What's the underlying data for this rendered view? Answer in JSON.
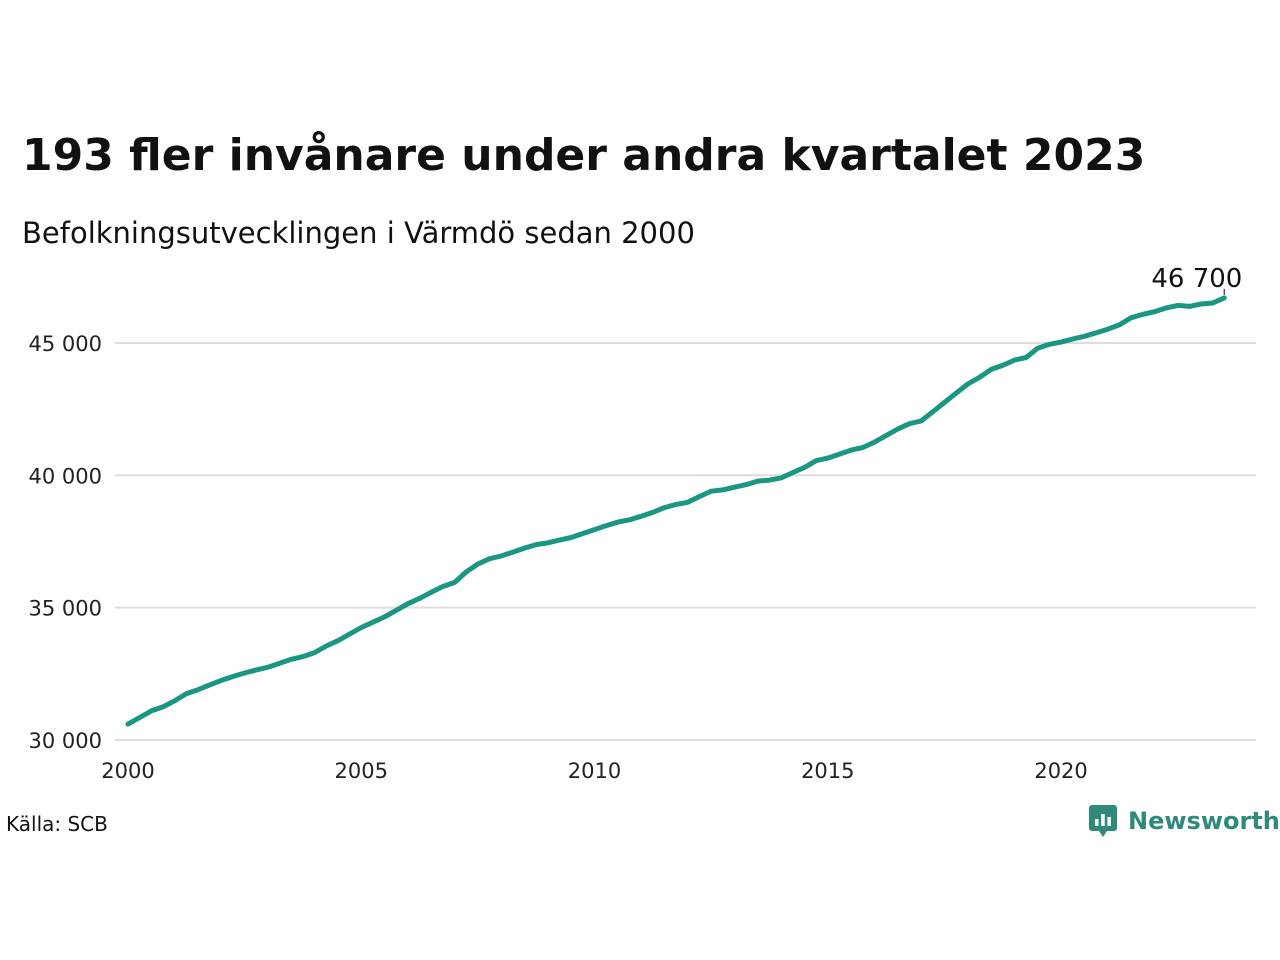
{
  "title": "193 fler invånare under andra kvartalet 2023",
  "subtitle": "Befolkningsutvecklingen i Värmdö sedan 2000",
  "source": "Källa: SCB",
  "brand": "Newsworthy",
  "colors": {
    "line": "#1a9683",
    "grid": "#dddddd",
    "brand": "#2f8a7b"
  },
  "chart_data": {
    "type": "line",
    "title": "193 fler invånare under andra kvartalet 2023",
    "subtitle": "Befolkningsutvecklingen i Värmdö sedan 2000",
    "xlim": [
      2000,
      2024.2
    ],
    "ylim": [
      30000,
      47000
    ],
    "x_ticks": [
      2000,
      2005,
      2010,
      2015,
      2020
    ],
    "x_tick_labels": [
      "2000",
      "2005",
      "2010",
      "2015",
      "2020"
    ],
    "y_ticks": [
      30000,
      35000,
      40000,
      45000
    ],
    "y_tick_labels": [
      "30 000",
      "35 000",
      "40 000",
      "45 000"
    ],
    "grid": "horizontal",
    "end_label": "46 700",
    "series": [
      {
        "values": [
          [
            2000.0,
            30600
          ],
          [
            2000.25,
            30850
          ],
          [
            2000.5,
            31100
          ],
          [
            2000.75,
            31250
          ],
          [
            2001.0,
            31480
          ],
          [
            2001.25,
            31750
          ],
          [
            2001.5,
            31900
          ],
          [
            2001.75,
            32080
          ],
          [
            2002.0,
            32250
          ],
          [
            2002.25,
            32400
          ],
          [
            2002.5,
            32530
          ],
          [
            2002.75,
            32650
          ],
          [
            2003.0,
            32750
          ],
          [
            2003.25,
            32900
          ],
          [
            2003.5,
            33050
          ],
          [
            2003.75,
            33150
          ],
          [
            2004.0,
            33300
          ],
          [
            2004.25,
            33550
          ],
          [
            2004.5,
            33750
          ],
          [
            2004.75,
            34000
          ],
          [
            2005.0,
            34250
          ],
          [
            2005.25,
            34450
          ],
          [
            2005.5,
            34650
          ],
          [
            2005.75,
            34900
          ],
          [
            2006.0,
            35150
          ],
          [
            2006.25,
            35350
          ],
          [
            2006.5,
            35580
          ],
          [
            2006.75,
            35800
          ],
          [
            2007.0,
            35950
          ],
          [
            2007.25,
            36350
          ],
          [
            2007.5,
            36650
          ],
          [
            2007.75,
            36850
          ],
          [
            2008.0,
            36950
          ],
          [
            2008.25,
            37100
          ],
          [
            2008.5,
            37250
          ],
          [
            2008.75,
            37380
          ],
          [
            2009.0,
            37450
          ],
          [
            2009.25,
            37550
          ],
          [
            2009.5,
            37650
          ],
          [
            2009.75,
            37800
          ],
          [
            2010.0,
            37950
          ],
          [
            2010.25,
            38100
          ],
          [
            2010.5,
            38230
          ],
          [
            2010.75,
            38320
          ],
          [
            2011.0,
            38450
          ],
          [
            2011.25,
            38600
          ],
          [
            2011.5,
            38780
          ],
          [
            2011.75,
            38900
          ],
          [
            2012.0,
            38980
          ],
          [
            2012.25,
            39200
          ],
          [
            2012.5,
            39400
          ],
          [
            2012.75,
            39450
          ],
          [
            2013.0,
            39550
          ],
          [
            2013.25,
            39650
          ],
          [
            2013.5,
            39780
          ],
          [
            2013.75,
            39820
          ],
          [
            2014.0,
            39900
          ],
          [
            2014.25,
            40100
          ],
          [
            2014.5,
            40300
          ],
          [
            2014.75,
            40550
          ],
          [
            2015.0,
            40650
          ],
          [
            2015.25,
            40800
          ],
          [
            2015.5,
            40950
          ],
          [
            2015.75,
            41050
          ],
          [
            2016.0,
            41250
          ],
          [
            2016.25,
            41500
          ],
          [
            2016.5,
            41750
          ],
          [
            2016.75,
            41950
          ],
          [
            2017.0,
            42050
          ],
          [
            2017.25,
            42400
          ],
          [
            2017.5,
            42750
          ],
          [
            2017.75,
            43100
          ],
          [
            2018.0,
            43450
          ],
          [
            2018.25,
            43700
          ],
          [
            2018.5,
            44000
          ],
          [
            2018.75,
            44150
          ],
          [
            2019.0,
            44350
          ],
          [
            2019.25,
            44450
          ],
          [
            2019.5,
            44800
          ],
          [
            2019.75,
            44950
          ],
          [
            2020.0,
            45030
          ],
          [
            2020.25,
            45150
          ],
          [
            2020.5,
            45250
          ],
          [
            2020.75,
            45380
          ],
          [
            2021.0,
            45520
          ],
          [
            2021.25,
            45680
          ],
          [
            2021.5,
            45950
          ],
          [
            2021.75,
            46080
          ],
          [
            2022.0,
            46180
          ],
          [
            2022.25,
            46320
          ],
          [
            2022.5,
            46420
          ],
          [
            2022.75,
            46380
          ],
          [
            2023.0,
            46470
          ],
          [
            2023.25,
            46510
          ],
          [
            2023.5,
            46700
          ]
        ]
      }
    ]
  }
}
